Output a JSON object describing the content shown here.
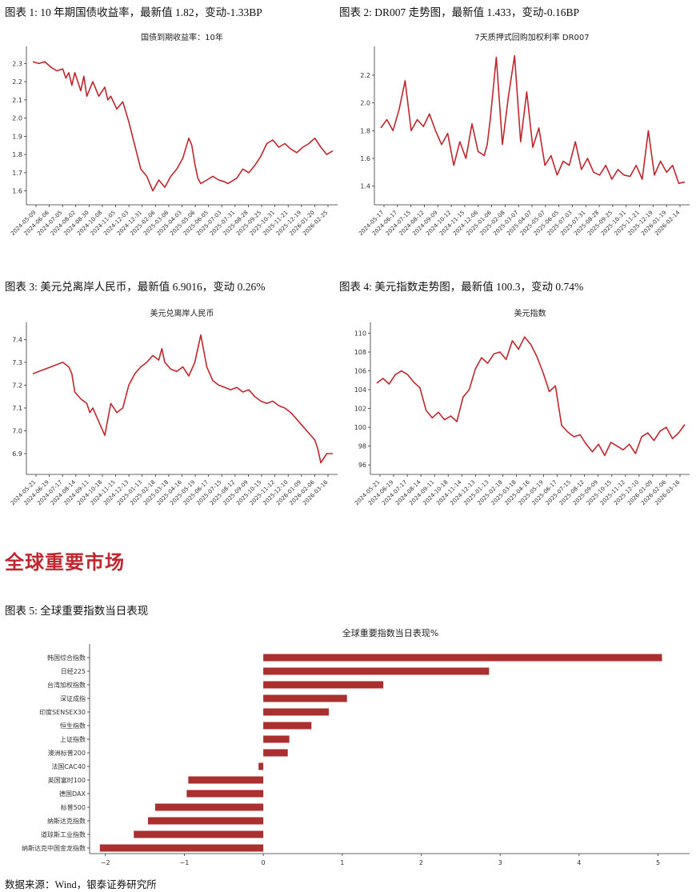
{
  "captions": {
    "c1": "图表 1: 10 年期国债收益率，最新值 1.82，变动-1.33BP",
    "c2": "图表 2: DR007 走势图，最新值 1.433，变动-0.16BP",
    "c3": "图表 3:  美元兑离岸人民币，最新值 6.9016，变动 0.26%",
    "c4": "图表 4:  美元指数走势图，最新值 100.3，变动 0.74%",
    "c5": "图表 5:  全球重要指数当日表现",
    "source": "数据来源：Wind，银泰证券研究所"
  },
  "section_title": "全球重要市场",
  "colors": {
    "line": "#c0262d",
    "bar": "#a9302f",
    "accent": "#c0262d"
  },
  "chart_data": [
    {
      "type": "line",
      "title": "国债到期收益率：10年",
      "xlabel": "",
      "ylabel": "",
      "ylim": [
        1.55,
        2.35
      ],
      "yticks": [
        1.6,
        1.7,
        1.8,
        1.9,
        2.0,
        2.1,
        2.2,
        2.3
      ],
      "yfmt": 1,
      "xticks": [
        "2024-05-09",
        "2024-06-06",
        "2024-07-05",
        "2024-08-02",
        "2024-08-30",
        "2024-10-08",
        "2024-11-05",
        "2024-12-03",
        "2024-12-31",
        "2025-02-06",
        "2025-03-06",
        "2025-04-03",
        "2025-05-06",
        "2025-06-05",
        "2025-07-03",
        "2025-07-31",
        "2025-08-28",
        "2025-09-25",
        "2025-10-31",
        "2025-11-21",
        "2025-12-19",
        "2026-01-20",
        "2026-02-25"
      ],
      "x_index": [
        0,
        2,
        4,
        6,
        8,
        10,
        11,
        12,
        13,
        14,
        16,
        17,
        18,
        20,
        22,
        24,
        25,
        26,
        28,
        30,
        32,
        34,
        36,
        38,
        40,
        41,
        42,
        44,
        46,
        48,
        50,
        52,
        53,
        54,
        55,
        56,
        58,
        60,
        62,
        64,
        65,
        66,
        68,
        70,
        72,
        74,
        76,
        78,
        80,
        82,
        84,
        86,
        88,
        90,
        92,
        94,
        96,
        98,
        100
      ],
      "values": [
        2.31,
        2.3,
        2.31,
        2.28,
        2.26,
        2.27,
        2.22,
        2.25,
        2.18,
        2.25,
        2.15,
        2.23,
        2.12,
        2.2,
        2.12,
        2.17,
        2.1,
        2.12,
        2.05,
        2.09,
        1.98,
        1.85,
        1.72,
        1.68,
        1.6,
        1.63,
        1.66,
        1.62,
        1.68,
        1.72,
        1.78,
        1.89,
        1.85,
        1.75,
        1.67,
        1.64,
        1.66,
        1.68,
        1.66,
        1.65,
        1.64,
        1.65,
        1.67,
        1.72,
        1.7,
        1.74,
        1.79,
        1.86,
        1.88,
        1.84,
        1.86,
        1.83,
        1.81,
        1.84,
        1.86,
        1.89,
        1.84,
        1.8,
        1.82
      ]
    },
    {
      "type": "line",
      "title": "7天质押式回购加权利率 DR007",
      "xlabel": "",
      "ylabel": "",
      "ylim": [
        1.3,
        2.35
      ],
      "yticks": [
        1.4,
        1.6,
        1.8,
        2.0,
        2.2
      ],
      "yfmt": 1,
      "xticks": [
        "2024-05-17",
        "2024-06-17",
        "2024-07-15",
        "2024-08-12",
        "2024-09-09",
        "2024-10-12",
        "2024-11-15",
        "2024-12-06",
        "2025-01-06",
        "2025-02-08",
        "2025-03-07",
        "2025-04-07",
        "2025-05-07",
        "2025-06-05",
        "2025-07-03",
        "2025-07-31",
        "2025-08-28",
        "2025-09-25",
        "2025-10-31",
        "2025-11-21",
        "2025-12-19",
        "2026-01-19",
        "2026-02-14"
      ],
      "x_index": [
        0,
        2,
        4,
        6,
        8,
        10,
        12,
        14,
        16,
        18,
        20,
        22,
        24,
        26,
        28,
        30,
        32,
        34,
        35,
        36,
        38,
        40,
        42,
        44,
        46,
        48,
        50,
        52,
        54,
        56,
        58,
        60,
        62,
        64,
        66,
        68,
        70,
        72,
        74,
        76,
        78,
        80,
        82,
        84,
        86,
        88,
        90,
        92,
        94,
        96,
        98,
        100
      ],
      "values": [
        1.82,
        1.88,
        1.8,
        1.95,
        2.16,
        1.8,
        1.88,
        1.83,
        1.92,
        1.8,
        1.7,
        1.78,
        1.55,
        1.72,
        1.6,
        1.85,
        1.65,
        1.62,
        1.7,
        1.88,
        2.33,
        1.7,
        2.05,
        2.34,
        1.72,
        2.08,
        1.68,
        1.82,
        1.55,
        1.62,
        1.48,
        1.58,
        1.55,
        1.72,
        1.52,
        1.6,
        1.5,
        1.48,
        1.55,
        1.45,
        1.52,
        1.48,
        1.47,
        1.55,
        1.45,
        1.8,
        1.48,
        1.58,
        1.5,
        1.55,
        1.42,
        1.43
      ]
    },
    {
      "type": "line",
      "title": "美元兑离岸人民币",
      "xlabel": "",
      "ylabel": "",
      "ylim": [
        6.83,
        7.44
      ],
      "yticks": [
        6.9,
        7.0,
        7.1,
        7.2,
        7.3,
        7.4
      ],
      "yfmt": 1,
      "xticks": [
        "2024-05-21",
        "2024-06-19",
        "2024-07-17",
        "2024-08-14",
        "2024-09-11",
        "2024-10-18",
        "2024-11-15",
        "2024-12-13",
        "2025-01-13",
        "2025-02-18",
        "2025-03-18",
        "2025-04-16",
        "2025-05-19",
        "2025-06-17",
        "2025-07-15",
        "2025-08-12",
        "2025-09-09",
        "2025-10-15",
        "2025-11-12",
        "2025-12-10",
        "2026-01-09",
        "2026-02-06",
        "2026-03-16"
      ],
      "x_index": [
        0,
        2,
        4,
        6,
        8,
        10,
        12,
        13,
        14,
        16,
        18,
        19,
        20,
        22,
        24,
        26,
        28,
        30,
        32,
        34,
        36,
        38,
        40,
        42,
        43,
        44,
        46,
        48,
        50,
        52,
        54,
        56,
        58,
        60,
        62,
        64,
        66,
        68,
        70,
        72,
        74,
        76,
        78,
        80,
        82,
        84,
        86,
        88,
        90,
        92,
        94,
        95,
        96,
        98,
        100
      ],
      "values": [
        7.25,
        7.26,
        7.27,
        7.28,
        7.29,
        7.3,
        7.28,
        7.25,
        7.17,
        7.14,
        7.12,
        7.08,
        7.1,
        7.04,
        6.98,
        7.12,
        7.08,
        7.1,
        7.2,
        7.25,
        7.28,
        7.3,
        7.33,
        7.31,
        7.36,
        7.3,
        7.27,
        7.26,
        7.28,
        7.24,
        7.3,
        7.42,
        7.28,
        7.22,
        7.2,
        7.19,
        7.18,
        7.19,
        7.17,
        7.18,
        7.15,
        7.13,
        7.12,
        7.13,
        7.11,
        7.1,
        7.08,
        7.05,
        7.02,
        6.99,
        6.96,
        6.92,
        6.86,
        6.9,
        6.9
      ]
    },
    {
      "type": "line",
      "title": "美元指数",
      "xlabel": "",
      "ylabel": "",
      "ylim": [
        95.5,
        110.3
      ],
      "yticks": [
        96,
        98,
        100,
        102,
        104,
        106,
        108,
        110
      ],
      "yfmt": 0,
      "xticks": [
        "2024-05-21",
        "2024-06-19",
        "2024-07-17",
        "2024-08-14",
        "2024-09-11",
        "2024-10-18",
        "2024-11-14",
        "2024-12-13",
        "2025-01-13",
        "2025-02-18",
        "2025-03-18",
        "2025-04-16",
        "2025-05-19",
        "2025-06-17",
        "2025-07-15",
        "2025-08-12",
        "2025-09-09",
        "2025-10-15",
        "2025-11-12",
        "2025-12-10",
        "2026-01-09",
        "2026-02-06",
        "2026-03-16"
      ],
      "x_index": [
        0,
        2,
        4,
        6,
        8,
        10,
        12,
        14,
        16,
        18,
        20,
        22,
        24,
        26,
        28,
        30,
        32,
        34,
        36,
        38,
        40,
        42,
        44,
        46,
        48,
        50,
        52,
        54,
        56,
        58,
        60,
        62,
        64,
        66,
        68,
        70,
        72,
        74,
        76,
        78,
        80,
        82,
        84,
        86,
        88,
        90,
        92,
        94,
        96,
        98,
        100
      ],
      "values": [
        104.7,
        105.2,
        104.6,
        105.6,
        106.0,
        105.6,
        104.8,
        104.2,
        101.8,
        101.0,
        101.6,
        100.8,
        101.2,
        100.6,
        103.2,
        104.0,
        106.2,
        107.4,
        106.8,
        107.8,
        108.0,
        107.2,
        109.2,
        108.3,
        109.6,
        108.8,
        107.5,
        105.8,
        103.8,
        104.4,
        100.2,
        99.5,
        99.0,
        99.2,
        98.2,
        97.4,
        98.2,
        97.0,
        98.4,
        98.0,
        97.6,
        98.2,
        97.2,
        99.0,
        99.4,
        98.6,
        99.6,
        100.0,
        98.8,
        99.4,
        100.3
      ]
    },
    {
      "type": "bar",
      "orientation": "horizontal",
      "title": "全球重要指数当日表现%",
      "xlabel": "",
      "ylabel": "",
      "xlim": [
        -2.2,
        5.4
      ],
      "xticks": [
        -2,
        -1,
        0,
        1,
        2,
        3,
        4,
        5
      ],
      "xtick_labels": [
        "−2",
        "−1",
        "0",
        "1",
        "2",
        "3",
        "4",
        "5"
      ],
      "categories": [
        "韩国综合指数",
        "日经225",
        "台湾加权指数",
        "深证成指",
        "印度SENSEX30",
        "恒生指数",
        "上证指数",
        "澳洲标普200",
        "法国CAC40",
        "英国富时100",
        "德国DAX",
        "标普500",
        "纳斯达克指数",
        "道琼斯工业指数",
        "纳斯达克中国金龙指数"
      ],
      "values": [
        5.05,
        2.86,
        1.52,
        1.06,
        0.83,
        0.61,
        0.33,
        0.31,
        -0.06,
        -0.95,
        -0.97,
        -1.37,
        -1.46,
        -1.64,
        -2.07
      ]
    }
  ]
}
